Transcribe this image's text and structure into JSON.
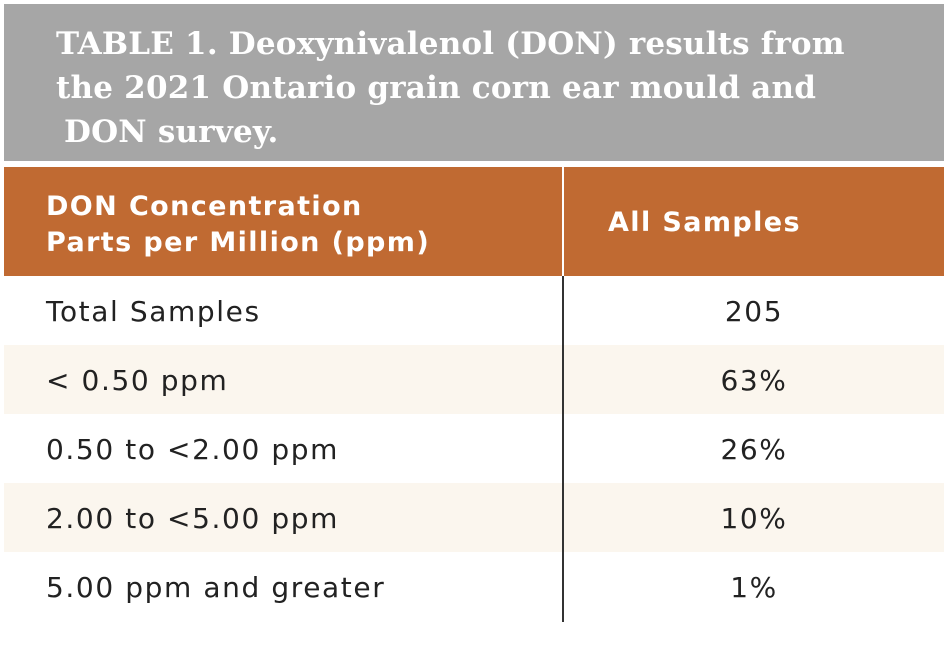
{
  "title": {
    "line1": "TABLE 1. Deoxynivalenol (DON) results from",
    "line2": "the 2021 Ontario grain corn ear mould and",
    "line3": "DON survey."
  },
  "table": {
    "header": {
      "col1_line1": "DON Concentration",
      "col1_line2": "Parts per Million (ppm)",
      "col2": "All Samples"
    },
    "rows": [
      {
        "label": "Total Samples",
        "value": "205"
      },
      {
        "label": "< 0.50 ppm",
        "value": "63%"
      },
      {
        "label": "0.50 to <2.00 ppm",
        "value": "26%"
      },
      {
        "label": "2.00 to <5.00 ppm",
        "value": "10%"
      },
      {
        "label": "5.00 ppm and greater",
        "value": "1%"
      }
    ]
  },
  "colors": {
    "title_background": "#a6a6a6",
    "header_background": "#c06a32",
    "shaded_row": "#fbf6ee"
  }
}
